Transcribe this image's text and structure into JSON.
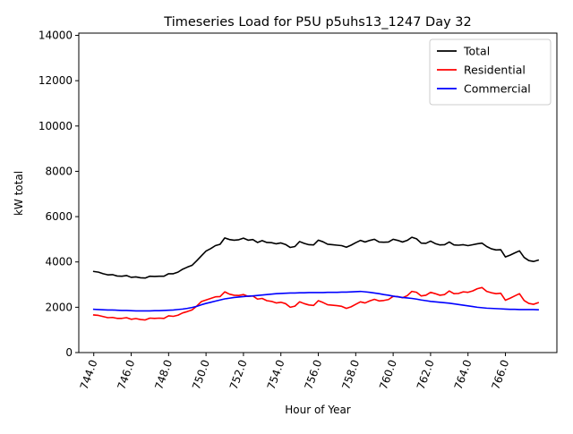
{
  "chart_data": {
    "type": "line",
    "title": "Timeseries Load for P5U p5uhs13_1247  Day 32",
    "xlabel": "Hour of Year",
    "ylabel": "kW total",
    "xlim": [
      743.2,
      768.75
    ],
    "ylim": [
      0,
      14100
    ],
    "x_ticks": [
      744,
      746,
      748,
      750,
      752,
      754,
      756,
      758,
      760,
      762,
      764,
      766
    ],
    "x_tick_labels": [
      "744.0",
      "746.0",
      "748.0",
      "750.0",
      "752.0",
      "754.0",
      "756.0",
      "758.0",
      "760.0",
      "762.0",
      "764.0",
      "766.0"
    ],
    "y_ticks": [
      0,
      2000,
      4000,
      6000,
      8000,
      10000,
      12000,
      14000
    ],
    "y_tick_labels": [
      "0",
      "2000",
      "4000",
      "6000",
      "8000",
      "10000",
      "12000",
      "14000"
    ],
    "legend_position": "top-right",
    "x": [
      744.0,
      744.25,
      744.5,
      744.75,
      745.0,
      745.25,
      745.5,
      745.75,
      746.0,
      746.25,
      746.5,
      746.75,
      747.0,
      747.25,
      747.5,
      747.75,
      748.0,
      748.25,
      748.5,
      748.75,
      749.0,
      749.25,
      749.5,
      749.75,
      750.0,
      750.25,
      750.5,
      750.75,
      751.0,
      751.25,
      751.5,
      751.75,
      752.0,
      752.25,
      752.5,
      752.75,
      753.0,
      753.25,
      753.5,
      753.75,
      754.0,
      754.25,
      754.5,
      754.75,
      755.0,
      755.25,
      755.5,
      755.75,
      756.0,
      756.25,
      756.5,
      756.75,
      757.0,
      757.25,
      757.5,
      757.75,
      758.0,
      758.25,
      758.5,
      758.75,
      759.0,
      759.25,
      759.5,
      759.75,
      760.0,
      760.25,
      760.5,
      760.75,
      761.0,
      761.25,
      761.5,
      761.75,
      762.0,
      762.25,
      762.5,
      762.75,
      763.0,
      763.25,
      763.5,
      763.75,
      764.0,
      764.25,
      764.5,
      764.75,
      765.0,
      765.25,
      765.5,
      765.75,
      766.0,
      766.25,
      766.5,
      766.75,
      767.0,
      767.25,
      767.5,
      767.75
    ],
    "series": [
      {
        "name": "Total",
        "color": "#000000",
        "values": [
          3580,
          3550,
          3480,
          3430,
          3440,
          3380,
          3370,
          3400,
          3320,
          3340,
          3300,
          3290,
          3370,
          3360,
          3370,
          3370,
          3480,
          3480,
          3550,
          3680,
          3770,
          3850,
          4050,
          4270,
          4480,
          4590,
          4720,
          4780,
          5060,
          4990,
          4960,
          4980,
          5050,
          4960,
          4990,
          4860,
          4940,
          4860,
          4850,
          4800,
          4840,
          4770,
          4640,
          4680,
          4900,
          4820,
          4760,
          4750,
          4960,
          4890,
          4780,
          4760,
          4740,
          4720,
          4650,
          4740,
          4850,
          4950,
          4880,
          4950,
          5000,
          4880,
          4870,
          4880,
          5000,
          4950,
          4880,
          4950,
          5090,
          5020,
          4830,
          4820,
          4920,
          4810,
          4750,
          4760,
          4880,
          4750,
          4740,
          4760,
          4720,
          4760,
          4800,
          4830,
          4680,
          4580,
          4530,
          4540,
          4220,
          4300,
          4400,
          4490,
          4200,
          4060,
          4020,
          4080
        ]
      },
      {
        "name": "Residential",
        "color": "#ff0000",
        "values": [
          1660,
          1640,
          1590,
          1540,
          1550,
          1510,
          1510,
          1540,
          1470,
          1500,
          1460,
          1440,
          1520,
          1510,
          1520,
          1510,
          1620,
          1600,
          1650,
          1750,
          1810,
          1880,
          2050,
          2250,
          2320,
          2390,
          2460,
          2470,
          2680,
          2580,
          2530,
          2520,
          2560,
          2480,
          2500,
          2360,
          2390,
          2290,
          2260,
          2190,
          2220,
          2160,
          2000,
          2050,
          2240,
          2160,
          2100,
          2080,
          2290,
          2210,
          2110,
          2090,
          2070,
          2040,
          1950,
          2020,
          2130,
          2240,
          2190,
          2280,
          2350,
          2280,
          2300,
          2340,
          2480,
          2470,
          2420,
          2510,
          2700,
          2660,
          2500,
          2530,
          2660,
          2600,
          2530,
          2560,
          2720,
          2600,
          2610,
          2680,
          2660,
          2720,
          2820,
          2870,
          2700,
          2640,
          2600,
          2620,
          2310,
          2400,
          2500,
          2600,
          2300,
          2170,
          2130,
          2200
        ]
      },
      {
        "name": "Commercial",
        "color": "#0000ff",
        "values": [
          1910,
          1900,
          1890,
          1880,
          1880,
          1870,
          1860,
          1860,
          1850,
          1840,
          1840,
          1840,
          1840,
          1850,
          1850,
          1860,
          1870,
          1880,
          1900,
          1920,
          1950,
          1990,
          2040,
          2110,
          2170,
          2220,
          2270,
          2320,
          2370,
          2400,
          2430,
          2450,
          2470,
          2490,
          2500,
          2520,
          2540,
          2560,
          2580,
          2600,
          2610,
          2620,
          2630,
          2630,
          2640,
          2640,
          2650,
          2650,
          2650,
          2650,
          2660,
          2660,
          2660,
          2670,
          2670,
          2680,
          2690,
          2700,
          2680,
          2660,
          2630,
          2600,
          2560,
          2530,
          2490,
          2460,
          2430,
          2410,
          2390,
          2360,
          2320,
          2290,
          2260,
          2240,
          2220,
          2200,
          2180,
          2150,
          2120,
          2090,
          2060,
          2030,
          2000,
          1980,
          1960,
          1950,
          1940,
          1930,
          1920,
          1910,
          1910,
          1900,
          1900,
          1900,
          1900,
          1890
        ]
      }
    ]
  }
}
